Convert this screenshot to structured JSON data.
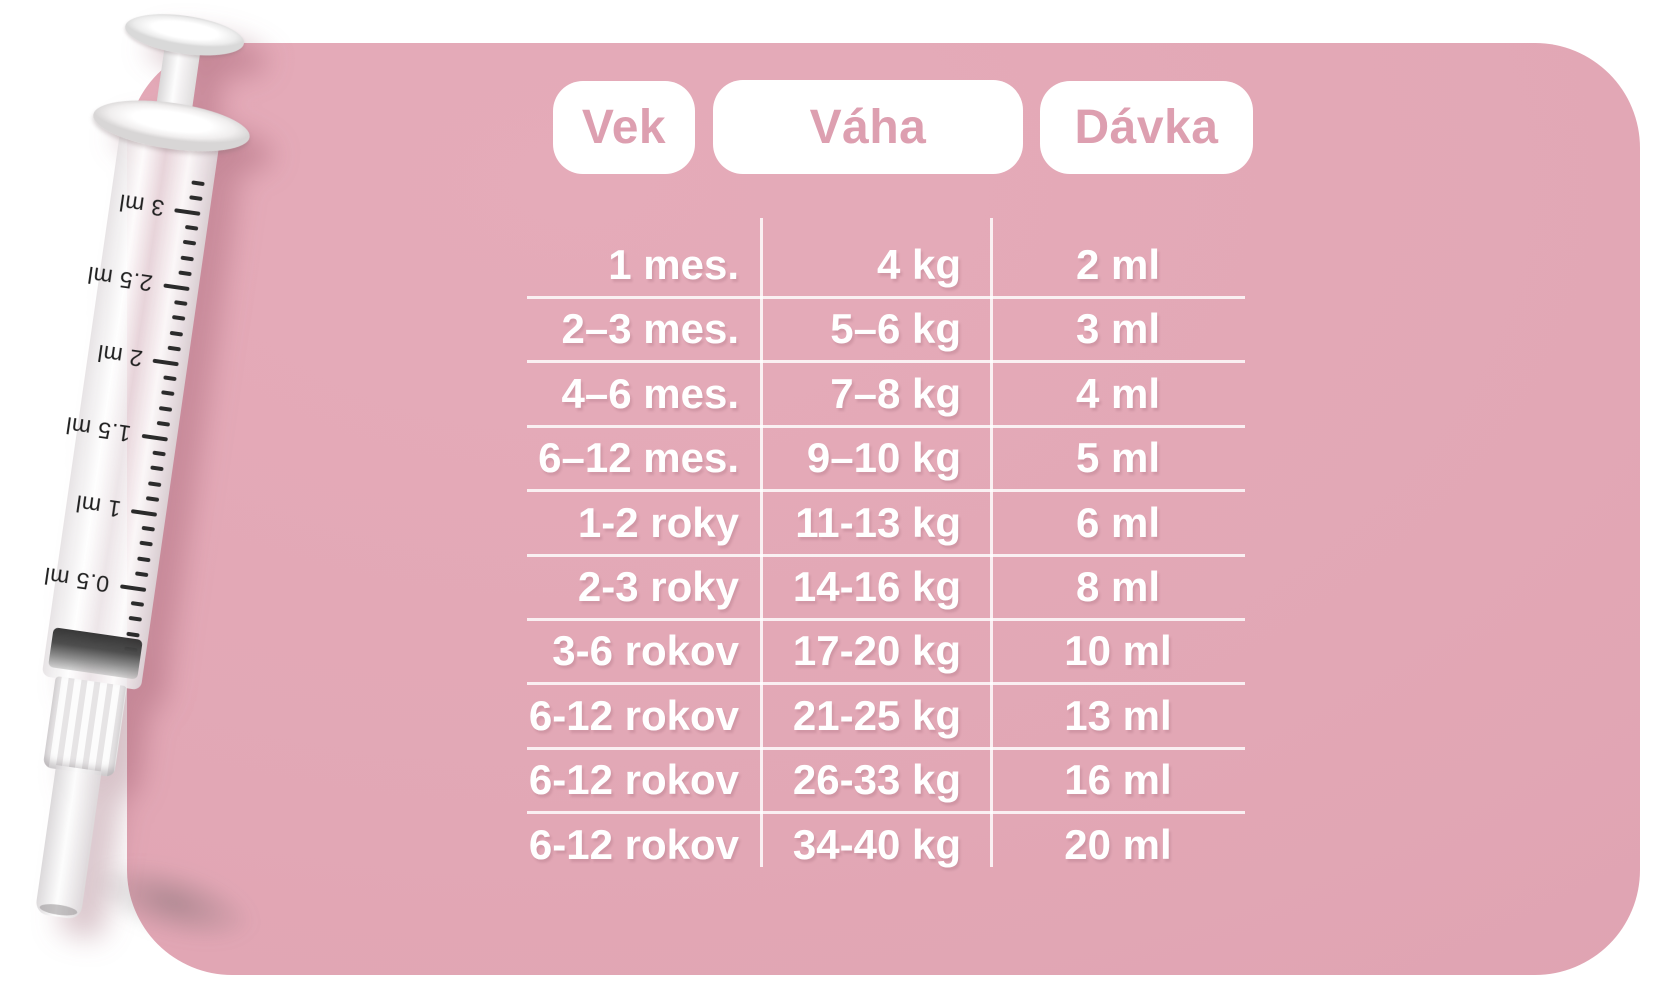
{
  "table": {
    "headers": [
      {
        "id": "vek",
        "label": "Vek"
      },
      {
        "id": "vaha",
        "label": "Váha"
      },
      {
        "id": "davka",
        "label": "Dávka"
      }
    ],
    "rows": [
      {
        "age": "1 mes.",
        "weight": "4 kg",
        "dose": "2 ml"
      },
      {
        "age": "2–3 mes.",
        "weight": "5–6 kg",
        "dose": "3 ml"
      },
      {
        "age": "4–6 mes.",
        "weight": "7–8 kg",
        "dose": "4 ml"
      },
      {
        "age": "6–12 mes.",
        "weight": "9–10 kg",
        "dose": "5 ml"
      },
      {
        "age": "1-2 roky",
        "weight": "11-13 kg",
        "dose": "6 ml"
      },
      {
        "age": "2-3 roky",
        "weight": "14-16 kg",
        "dose": "8 ml"
      },
      {
        "age": "3-6 rokov",
        "weight": "17-20 kg",
        "dose": "10 ml"
      },
      {
        "age": "6-12 rokov",
        "weight": "21-25 kg",
        "dose": "13 ml"
      },
      {
        "age": "6-12 rokov",
        "weight": "26-33 kg",
        "dose": "16 ml"
      },
      {
        "age": "6-12 rokov",
        "weight": "34-40 kg",
        "dose": "20 ml"
      }
    ]
  },
  "syringe": {
    "scale_labels": [
      "3 ml",
      "2.5 ml",
      "2 ml",
      "1.5 ml",
      "1 ml",
      "0.5 ml"
    ]
  },
  "colors": {
    "card_pink": "#e2a7b5",
    "pill_text_pink": "#dd9fb0",
    "table_text": "#ffffff",
    "divider_white": "rgba(255,255,255,0.82)"
  }
}
